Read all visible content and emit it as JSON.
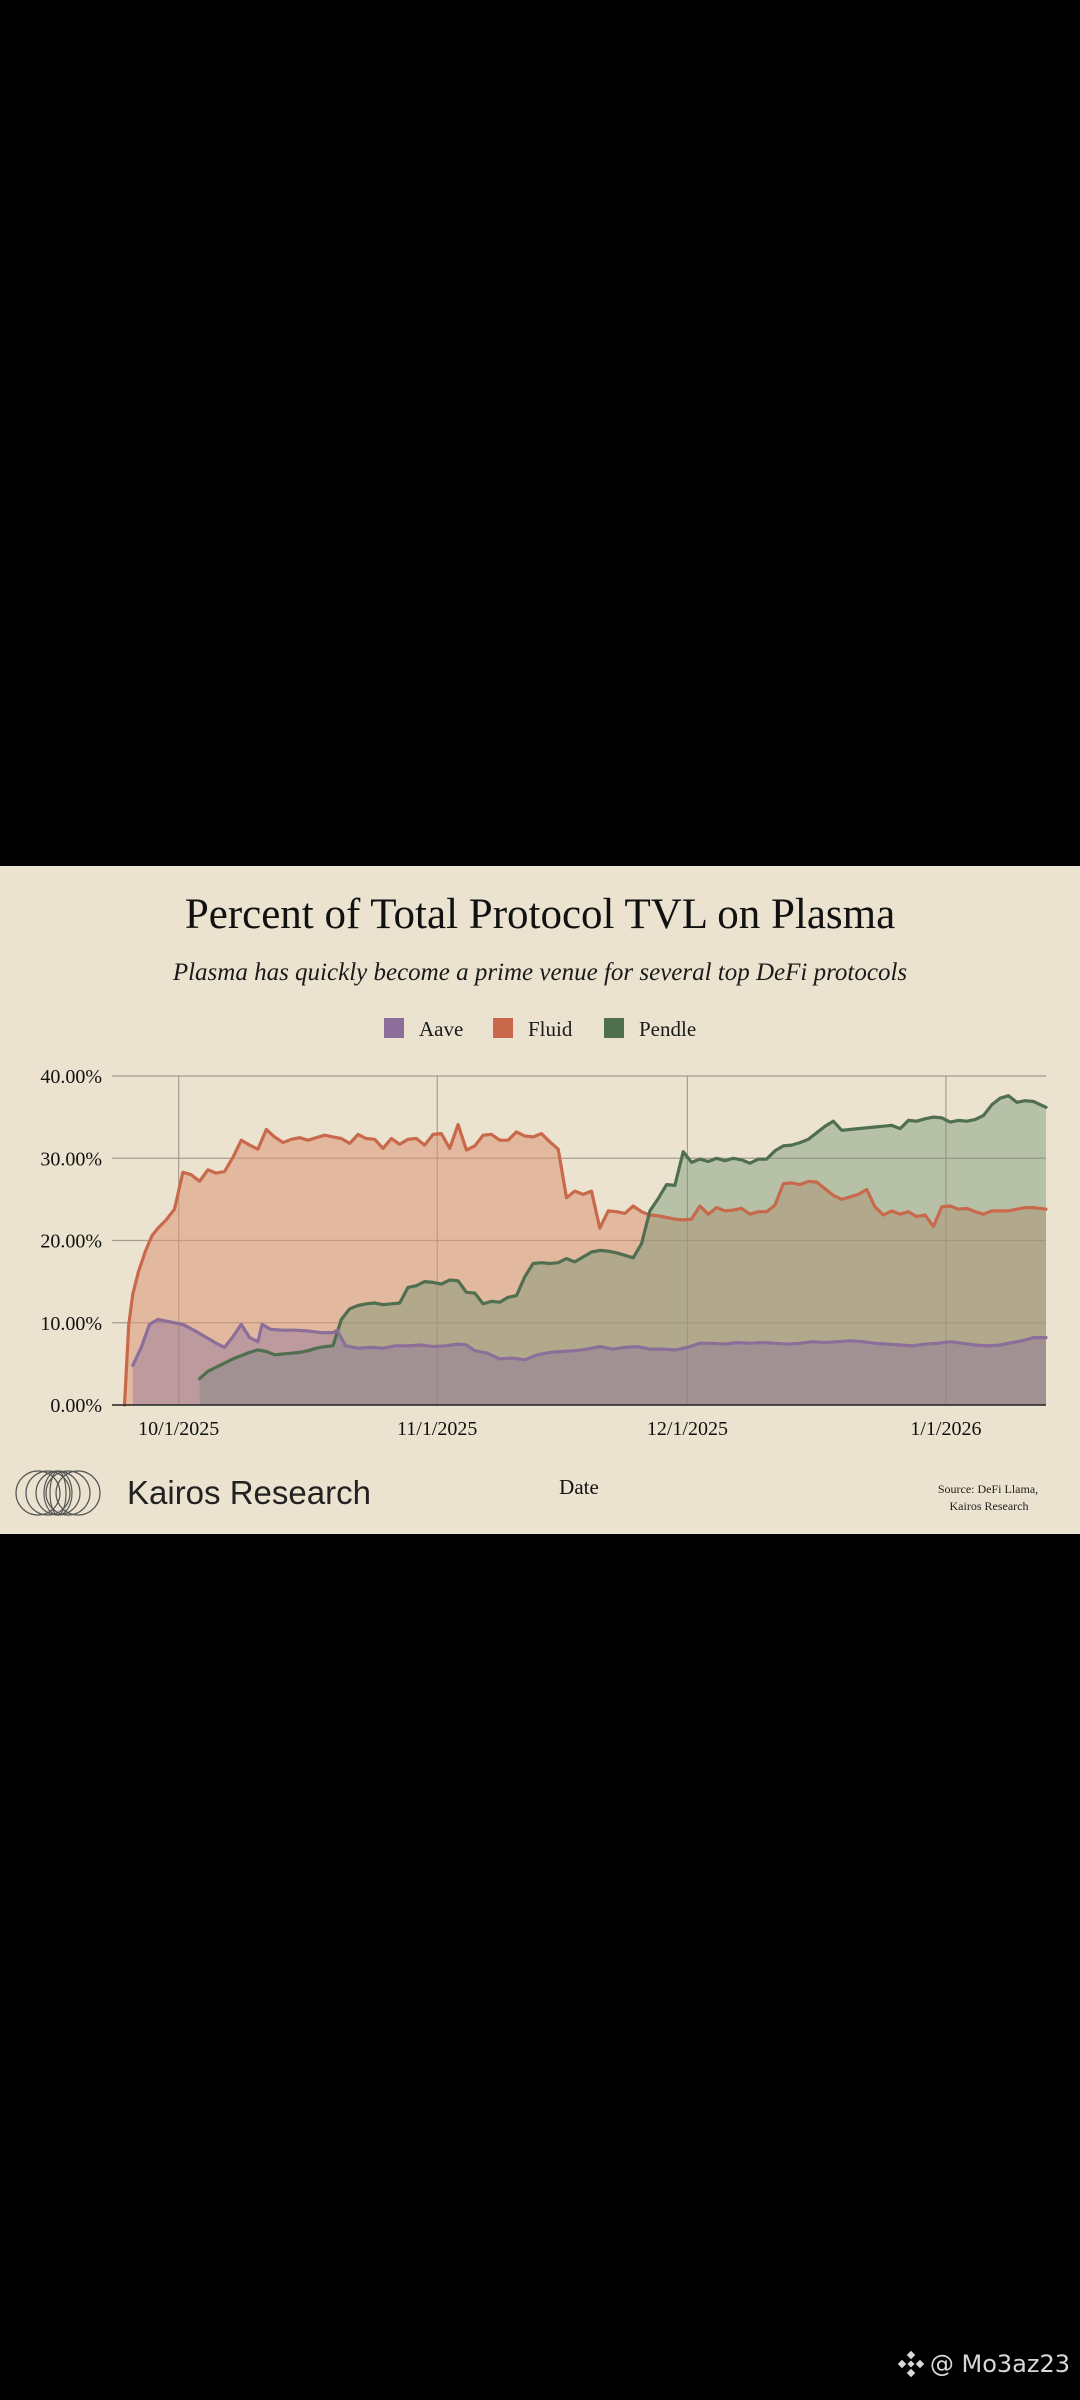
{
  "chart_data": {
    "type": "area",
    "title": "Percent of Total Protocol TVL on Plasma",
    "subtitle": "Plasma has quickly become a prime venue for several top DeFi protocols",
    "xlabel": "Date",
    "ylabel": "",
    "x_start": "9/23/2025",
    "x_end": "1/11/2026",
    "ylim": [
      0,
      40
    ],
    "yticks": [
      "0.00%",
      "10.00%",
      "20.00%",
      "30.00%",
      "40.00%"
    ],
    "ytick_values": [
      0,
      10,
      20,
      30,
      40
    ],
    "xticks": [
      {
        "label": "10/1/2025",
        "day": 8
      },
      {
        "label": "11/1/2025",
        "day": 39
      },
      {
        "label": "12/1/2025",
        "day": 69
      },
      {
        "label": "1/1/2026",
        "day": 100
      }
    ],
    "legend": [
      "Aave",
      "Fluid",
      "Pendle"
    ],
    "legend_position": "top-center",
    "grid": true,
    "series": [
      {
        "name": "Aave",
        "color": "#8b6f9a",
        "fill": "rgba(139,111,154,0.42)",
        "points": [
          [
            2.5,
            4.8
          ],
          [
            3.5,
            7
          ],
          [
            4.5,
            9.8
          ],
          [
            5.5,
            10.4
          ],
          [
            7,
            10.1
          ],
          [
            8.5,
            9.8
          ],
          [
            10,
            9
          ],
          [
            11,
            8.4
          ],
          [
            12.5,
            7.5
          ],
          [
            13.5,
            7
          ],
          [
            14.5,
            8.3
          ],
          [
            15.5,
            9.8
          ],
          [
            16.5,
            8.2
          ],
          [
            17.5,
            7.7
          ],
          [
            18,
            9.8
          ],
          [
            19,
            9.2
          ],
          [
            20.5,
            9.1
          ],
          [
            22,
            9.1
          ],
          [
            23.5,
            9
          ],
          [
            25,
            8.8
          ],
          [
            26.5,
            8.8
          ],
          [
            27,
            9.1
          ],
          [
            28,
            7.2
          ],
          [
            29.5,
            6.9
          ],
          [
            31,
            7
          ],
          [
            32.5,
            6.9
          ],
          [
            34,
            7.2
          ],
          [
            35.5,
            7.2
          ],
          [
            37,
            7.3
          ],
          [
            38.5,
            7.1
          ],
          [
            40,
            7.2
          ],
          [
            41.5,
            7.4
          ],
          [
            42.5,
            7.3
          ],
          [
            43.5,
            6.6
          ],
          [
            45,
            6.3
          ],
          [
            46.5,
            5.6
          ],
          [
            48,
            5.7
          ],
          [
            49.5,
            5.5
          ],
          [
            51,
            6.1
          ],
          [
            52.5,
            6.4
          ],
          [
            54,
            6.5
          ],
          [
            55.5,
            6.6
          ],
          [
            57,
            6.8
          ],
          [
            58.5,
            7.1
          ],
          [
            60,
            6.8
          ],
          [
            61.5,
            7
          ],
          [
            63,
            7.1
          ],
          [
            64.5,
            6.8
          ],
          [
            66,
            6.8
          ],
          [
            67.5,
            6.7
          ],
          [
            69,
            7
          ],
          [
            70.5,
            7.5
          ],
          [
            72,
            7.5
          ],
          [
            73.5,
            7.4
          ],
          [
            75,
            7.6
          ],
          [
            76.5,
            7.5
          ],
          [
            78,
            7.6
          ],
          [
            79.5,
            7.5
          ],
          [
            81,
            7.4
          ],
          [
            82.5,
            7.5
          ],
          [
            84,
            7.7
          ],
          [
            85.5,
            7.6
          ],
          [
            87,
            7.7
          ],
          [
            88.5,
            7.8
          ],
          [
            90,
            7.7
          ],
          [
            91.5,
            7.5
          ],
          [
            93,
            7.4
          ],
          [
            94.5,
            7.3
          ],
          [
            96,
            7.2
          ],
          [
            97.5,
            7.4
          ],
          [
            99,
            7.5
          ],
          [
            100.5,
            7.7
          ],
          [
            102,
            7.5
          ],
          [
            103.5,
            7.3
          ],
          [
            105,
            7.2
          ],
          [
            106.5,
            7.3
          ],
          [
            108,
            7.6
          ],
          [
            109.5,
            7.9
          ],
          [
            110.5,
            8.2
          ],
          [
            112,
            8.2
          ]
        ]
      },
      {
        "name": "Fluid",
        "color": "#c9694b",
        "fill": "rgba(218,150,120,0.55)",
        "points": [
          [
            1.5,
            0
          ],
          [
            2,
            9.7
          ],
          [
            2.5,
            13.5
          ],
          [
            3.2,
            16.3
          ],
          [
            4,
            18.7
          ],
          [
            4.8,
            20.6
          ],
          [
            5.5,
            21.5
          ],
          [
            6.5,
            22.5
          ],
          [
            7.5,
            23.8
          ],
          [
            8.5,
            28.3
          ],
          [
            9.5,
            28
          ],
          [
            10.5,
            27.2
          ],
          [
            11.5,
            28.6
          ],
          [
            12.5,
            28.2
          ],
          [
            13.5,
            28.4
          ],
          [
            14.5,
            30.1
          ],
          [
            15.5,
            32.2
          ],
          [
            16.5,
            31.6
          ],
          [
            17.5,
            31.1
          ],
          [
            18.5,
            33.5
          ],
          [
            19.5,
            32.6
          ],
          [
            20.5,
            31.9
          ],
          [
            21.5,
            32.3
          ],
          [
            22.5,
            32.5
          ],
          [
            23.5,
            32.2
          ],
          [
            24.5,
            32.5
          ],
          [
            25.5,
            32.8
          ],
          [
            26.5,
            32.6
          ],
          [
            27.5,
            32.4
          ],
          [
            28.5,
            31.8
          ],
          [
            29.5,
            32.9
          ],
          [
            30.5,
            32.4
          ],
          [
            31.5,
            32.3
          ],
          [
            32.5,
            31.2
          ],
          [
            33.5,
            32.4
          ],
          [
            34.5,
            31.7
          ],
          [
            35.5,
            32.3
          ],
          [
            36.5,
            32.4
          ],
          [
            37.5,
            31.6
          ],
          [
            38.5,
            32.9
          ],
          [
            39.5,
            33
          ],
          [
            40.5,
            31.2
          ],
          [
            41.5,
            34.1
          ],
          [
            42.5,
            31
          ],
          [
            43.5,
            31.5
          ],
          [
            44.5,
            32.8
          ],
          [
            45.5,
            32.9
          ],
          [
            46.5,
            32.2
          ],
          [
            47.5,
            32.2
          ],
          [
            48.5,
            33.2
          ],
          [
            49.5,
            32.7
          ],
          [
            50.5,
            32.6
          ],
          [
            51.5,
            33
          ],
          [
            52.5,
            32
          ],
          [
            53.5,
            31.1
          ],
          [
            54.5,
            25.2
          ],
          [
            55.5,
            26
          ],
          [
            56.5,
            25.6
          ],
          [
            57.5,
            26
          ],
          [
            58.5,
            21.5
          ],
          [
            59.5,
            23.6
          ],
          [
            60.5,
            23.5
          ],
          [
            61.5,
            23.3
          ],
          [
            62.5,
            24.2
          ],
          [
            63.5,
            23.5
          ],
          [
            64.5,
            23.1
          ],
          [
            65.5,
            23
          ],
          [
            66.5,
            22.8
          ],
          [
            67.5,
            22.6
          ],
          [
            68.5,
            22.5
          ],
          [
            69.5,
            22.6
          ],
          [
            70.5,
            24.2
          ],
          [
            71.5,
            23.2
          ],
          [
            72.5,
            24
          ],
          [
            73.5,
            23.6
          ],
          [
            74.5,
            23.7
          ],
          [
            75.5,
            23.9
          ],
          [
            76.5,
            23.2
          ],
          [
            77.5,
            23.5
          ],
          [
            78.5,
            23.5
          ],
          [
            79.5,
            24.3
          ],
          [
            80.5,
            26.9
          ],
          [
            81.5,
            27
          ],
          [
            82.5,
            26.8
          ],
          [
            83.5,
            27.2
          ],
          [
            84.5,
            27.1
          ],
          [
            85.5,
            26.3
          ],
          [
            86.5,
            25.5
          ],
          [
            87.5,
            25
          ],
          [
            88.5,
            25.3
          ],
          [
            89.5,
            25.6
          ],
          [
            90.5,
            26.2
          ],
          [
            91.5,
            24.1
          ],
          [
            92.5,
            23.1
          ],
          [
            93.5,
            23.6
          ],
          [
            94.5,
            23.2
          ],
          [
            95.5,
            23.5
          ],
          [
            96.5,
            22.9
          ],
          [
            97.5,
            23.1
          ],
          [
            98.5,
            21.7
          ],
          [
            99.5,
            24.1
          ],
          [
            100.5,
            24.2
          ],
          [
            101.5,
            23.8
          ],
          [
            102.5,
            23.9
          ],
          [
            103.5,
            23.5
          ],
          [
            104.5,
            23.2
          ],
          [
            105.5,
            23.6
          ],
          [
            106.5,
            23.6
          ],
          [
            107.5,
            23.6
          ],
          [
            108.5,
            23.8
          ],
          [
            109.5,
            24
          ],
          [
            110.5,
            24
          ],
          [
            112,
            23.8
          ]
        ]
      },
      {
        "name": "Pendle",
        "color": "#4f6f4f",
        "fill": "rgba(120,150,120,0.45)",
        "points": [
          [
            10.5,
            3.2
          ],
          [
            11.5,
            4.1
          ],
          [
            12.5,
            4.6
          ],
          [
            13.5,
            5.1
          ],
          [
            14.5,
            5.6
          ],
          [
            15.5,
            6
          ],
          [
            16.5,
            6.4
          ],
          [
            17.5,
            6.7
          ],
          [
            18.5,
            6.5
          ],
          [
            19.5,
            6.1
          ],
          [
            20.5,
            6.2
          ],
          [
            21.5,
            6.3
          ],
          [
            22.5,
            6.4
          ],
          [
            23.5,
            6.6
          ],
          [
            24.5,
            6.9
          ],
          [
            25.5,
            7.1
          ],
          [
            26.5,
            7.2
          ],
          [
            27.5,
            10.4
          ],
          [
            28.5,
            11.7
          ],
          [
            29.5,
            12.1
          ],
          [
            30.5,
            12.3
          ],
          [
            31.5,
            12.4
          ],
          [
            32.5,
            12.2
          ],
          [
            33.5,
            12.3
          ],
          [
            34.5,
            12.4
          ],
          [
            35.5,
            14.3
          ],
          [
            36.5,
            14.5
          ],
          [
            37.5,
            15
          ],
          [
            38.5,
            14.9
          ],
          [
            39.5,
            14.7
          ],
          [
            40.5,
            15.2
          ],
          [
            41.5,
            15.1
          ],
          [
            42.5,
            13.7
          ],
          [
            43.5,
            13.6
          ],
          [
            44.5,
            12.3
          ],
          [
            45.5,
            12.6
          ],
          [
            46.5,
            12.5
          ],
          [
            47.5,
            13.1
          ],
          [
            48.5,
            13.3
          ],
          [
            49.5,
            15.6
          ],
          [
            50.5,
            17.2
          ],
          [
            51.5,
            17.3
          ],
          [
            52.5,
            17.2
          ],
          [
            53.5,
            17.3
          ],
          [
            54.5,
            17.8
          ],
          [
            55.5,
            17.4
          ],
          [
            56.5,
            18
          ],
          [
            57.5,
            18.6
          ],
          [
            58.5,
            18.8
          ],
          [
            59.5,
            18.7
          ],
          [
            60.5,
            18.5
          ],
          [
            61.5,
            18.2
          ],
          [
            62.5,
            17.9
          ],
          [
            63.5,
            19.6
          ],
          [
            64.5,
            23.6
          ],
          [
            65.5,
            25.1
          ],
          [
            66.5,
            26.8
          ],
          [
            67.5,
            26.7
          ],
          [
            68.5,
            30.8
          ],
          [
            69.5,
            29.5
          ],
          [
            70.5,
            29.9
          ],
          [
            71.5,
            29.6
          ],
          [
            72.5,
            30
          ],
          [
            73.5,
            29.7
          ],
          [
            74.5,
            30
          ],
          [
            75.5,
            29.8
          ],
          [
            76.5,
            29.4
          ],
          [
            77.5,
            29.9
          ],
          [
            78.5,
            29.9
          ],
          [
            79.5,
            30.9
          ],
          [
            80.5,
            31.5
          ],
          [
            81.5,
            31.6
          ],
          [
            82.5,
            31.9
          ],
          [
            83.5,
            32.3
          ],
          [
            84.5,
            33.1
          ],
          [
            85.5,
            33.9
          ],
          [
            86.5,
            34.5
          ],
          [
            87.5,
            33.4
          ],
          [
            88.5,
            33.5
          ],
          [
            89.5,
            33.6
          ],
          [
            90.5,
            33.7
          ],
          [
            91.5,
            33.8
          ],
          [
            92.5,
            33.9
          ],
          [
            93.5,
            34
          ],
          [
            94.5,
            33.6
          ],
          [
            95.5,
            34.6
          ],
          [
            96.5,
            34.5
          ],
          [
            97.5,
            34.8
          ],
          [
            98.5,
            35
          ],
          [
            99.5,
            34.9
          ],
          [
            100.5,
            34.4
          ],
          [
            101.5,
            34.6
          ],
          [
            102.5,
            34.5
          ],
          [
            103.5,
            34.7
          ],
          [
            104.5,
            35.2
          ],
          [
            105.5,
            36.5
          ],
          [
            106.5,
            37.3
          ],
          [
            107.5,
            37.6
          ],
          [
            108.5,
            36.8
          ],
          [
            109.5,
            37
          ],
          [
            110.5,
            36.9
          ],
          [
            112,
            36.2
          ]
        ]
      }
    ]
  },
  "branding": {
    "name": "Kairos Research",
    "source_line1": "Source: DeFi Llama,",
    "source_line2": "Kairos Research"
  },
  "watermark": {
    "text": "@ Mo3az23"
  },
  "icons": {
    "brand_logo": "kairos-logo-icon",
    "watermark_logo": "binance-logo-icon"
  }
}
